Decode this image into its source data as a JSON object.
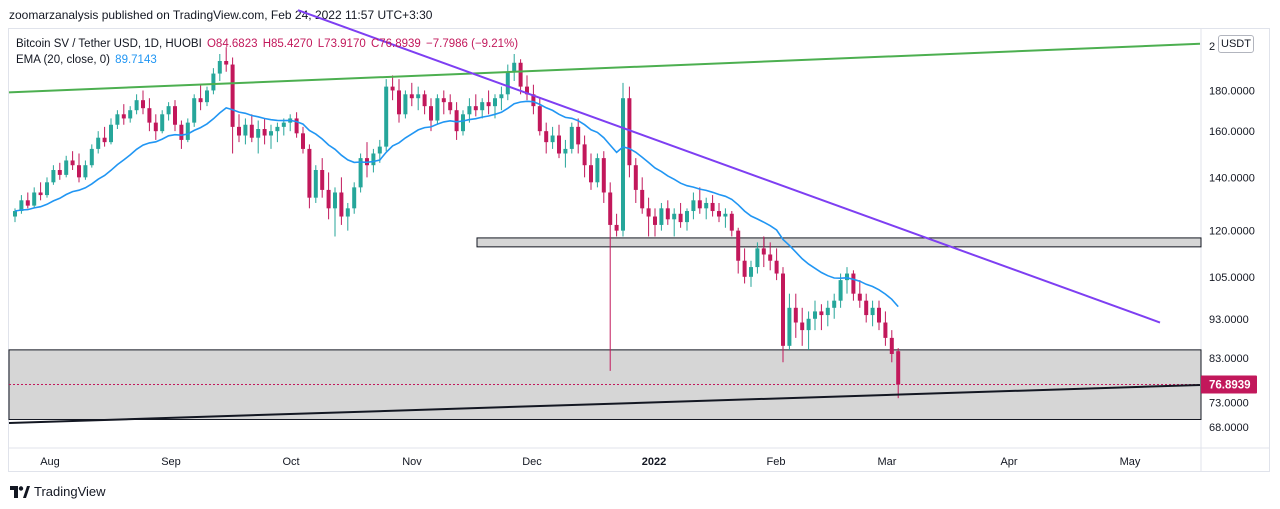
{
  "header": {
    "publish_line": "zoomarzanalysis published on TradingView.com, Feb 24, 2022 11:57 UTC+3:30"
  },
  "legend": {
    "symbol": "Bitcoin SV / Tether USD, 1D, HUOBI",
    "open": "O84.6823",
    "high": "H85.4270",
    "low": "L73.9170",
    "close": "C76.8939",
    "change": "−7.7986 (−9.21%)",
    "ema_label": "EMA (20, close, 0)",
    "ema_value": "89.7143"
  },
  "axis": {
    "unit": "USDT",
    "top_partial": "2",
    "price_labels": [
      "180.0000",
      "160.0000",
      "140.0000",
      "120.0000",
      "105.0000",
      "93.0000",
      "83.0000",
      "73.0000",
      "68.0000"
    ],
    "current_price": "76.8939"
  },
  "footer": {
    "brand": "TradingView"
  },
  "colors": {
    "up": "#26a69a",
    "down": "#c2185b",
    "ema": "#2196f3",
    "green_line": "#4caf50",
    "purple_line": "#7e3ff2",
    "black_line": "#131722",
    "zone_fill": "#d1d1d1"
  },
  "chart_data": {
    "type": "candlestick",
    "symbol": "BSV/USDT",
    "timeframe": "1D",
    "exchange": "HUOBI",
    "y_scale": "log",
    "ylim": [
      64,
      215
    ],
    "x_labels": [
      "Aug",
      "Sep",
      "Oct",
      "Nov",
      "Dec",
      "2022",
      "Feb",
      "Mar",
      "Apr",
      "May"
    ],
    "current_price": 76.8939,
    "ema_period": 20,
    "ema_last": 89.7143,
    "candles": [
      [
        125,
        128,
        123,
        127
      ],
      [
        127,
        133,
        126,
        131
      ],
      [
        131,
        134,
        128,
        129
      ],
      [
        129,
        136,
        128,
        134
      ],
      [
        134,
        138,
        131,
        133
      ],
      [
        133,
        140,
        132,
        138
      ],
      [
        138,
        145,
        137,
        143
      ],
      [
        143,
        146,
        139,
        141
      ],
      [
        141,
        149,
        140,
        147
      ],
      [
        147,
        151,
        143,
        145
      ],
      [
        145,
        150,
        138,
        140
      ],
      [
        140,
        147,
        139,
        145
      ],
      [
        145,
        154,
        144,
        152
      ],
      [
        152,
        160,
        150,
        157
      ],
      [
        157,
        162,
        153,
        155
      ],
      [
        155,
        166,
        154,
        163
      ],
      [
        163,
        170,
        161,
        168
      ],
      [
        168,
        173,
        163,
        166
      ],
      [
        166,
        172,
        164,
        170
      ],
      [
        170,
        178,
        168,
        175
      ],
      [
        175,
        180,
        168,
        171
      ],
      [
        171,
        176,
        160,
        164
      ],
      [
        164,
        168,
        156,
        160
      ],
      [
        160,
        170,
        159,
        168
      ],
      [
        168,
        174,
        165,
        172
      ],
      [
        172,
        175,
        160,
        163
      ],
      [
        163,
        165,
        152,
        156
      ],
      [
        156,
        166,
        155,
        164
      ],
      [
        164,
        178,
        162,
        176
      ],
      [
        176,
        183,
        170,
        174
      ],
      [
        174,
        182,
        172,
        180
      ],
      [
        180,
        192,
        178,
        189
      ],
      [
        189,
        200,
        185,
        196
      ],
      [
        196,
        204,
        190,
        194
      ],
      [
        194,
        198,
        150,
        162
      ],
      [
        162,
        168,
        155,
        158
      ],
      [
        158,
        166,
        154,
        163
      ],
      [
        163,
        168,
        155,
        157
      ],
      [
        157,
        165,
        150,
        161
      ],
      [
        161,
        166,
        154,
        158
      ],
      [
        158,
        163,
        152,
        160
      ],
      [
        160,
        164,
        155,
        162
      ],
      [
        162,
        166,
        158,
        164
      ],
      [
        164,
        168,
        160,
        166
      ],
      [
        166,
        169,
        157,
        159
      ],
      [
        159,
        162,
        150,
        152
      ],
      [
        152,
        154,
        128,
        132
      ],
      [
        132,
        145,
        130,
        143
      ],
      [
        143,
        148,
        132,
        135
      ],
      [
        135,
        142,
        124,
        128
      ],
      [
        128,
        136,
        118,
        134
      ],
      [
        134,
        140,
        122,
        125
      ],
      [
        125,
        130,
        120,
        128
      ],
      [
        128,
        138,
        126,
        136
      ],
      [
        136,
        150,
        134,
        148
      ],
      [
        148,
        155,
        140,
        145
      ],
      [
        145,
        152,
        142,
        150
      ],
      [
        150,
        156,
        146,
        153
      ],
      [
        153,
        186,
        151,
        182
      ],
      [
        182,
        188,
        175,
        180
      ],
      [
        180,
        186,
        164,
        168
      ],
      [
        168,
        180,
        166,
        178
      ],
      [
        178,
        184,
        172,
        176
      ],
      [
        176,
        182,
        170,
        178
      ],
      [
        178,
        180,
        168,
        172
      ],
      [
        172,
        176,
        160,
        165
      ],
      [
        165,
        178,
        163,
        176
      ],
      [
        176,
        180,
        168,
        174
      ],
      [
        174,
        178,
        168,
        170
      ],
      [
        170,
        174,
        156,
        160
      ],
      [
        160,
        170,
        158,
        168
      ],
      [
        168,
        176,
        164,
        172
      ],
      [
        172,
        178,
        167,
        170
      ],
      [
        170,
        176,
        166,
        174
      ],
      [
        174,
        180,
        168,
        172
      ],
      [
        172,
        178,
        166,
        176
      ],
      [
        176,
        182,
        170,
        178
      ],
      [
        178,
        194,
        175,
        190
      ],
      [
        190,
        200,
        185,
        195
      ],
      [
        195,
        197,
        178,
        182
      ],
      [
        182,
        188,
        175,
        178
      ],
      [
        178,
        183,
        168,
        172
      ],
      [
        172,
        176,
        158,
        160
      ],
      [
        160,
        164,
        150,
        155
      ],
      [
        155,
        162,
        152,
        158
      ],
      [
        158,
        163,
        148,
        150
      ],
      [
        150,
        156,
        144,
        152
      ],
      [
        152,
        164,
        150,
        162
      ],
      [
        162,
        166,
        150,
        154
      ],
      [
        154,
        158,
        140,
        145
      ],
      [
        145,
        150,
        135,
        138
      ],
      [
        138,
        150,
        136,
        148
      ],
      [
        148,
        151,
        130,
        134
      ],
      [
        134,
        138,
        80,
        122
      ],
      [
        122,
        126,
        118,
        120
      ],
      [
        120,
        184,
        118,
        176
      ],
      [
        176,
        182,
        140,
        145
      ],
      [
        145,
        148,
        130,
        135
      ],
      [
        135,
        140,
        126,
        128
      ],
      [
        128,
        132,
        118,
        125
      ],
      [
        125,
        128,
        118,
        122
      ],
      [
        122,
        130,
        120,
        128
      ],
      [
        128,
        131,
        122,
        124
      ],
      [
        124,
        128,
        118,
        126
      ],
      [
        126,
        130,
        121,
        123
      ],
      [
        123,
        128,
        120,
        127
      ],
      [
        127,
        134,
        124,
        131
      ],
      [
        131,
        136,
        126,
        128
      ],
      [
        128,
        132,
        124,
        130
      ],
      [
        130,
        133,
        125,
        127
      ],
      [
        127,
        130,
        123,
        125
      ],
      [
        125,
        128,
        121,
        126
      ],
      [
        126,
        127,
        118,
        120
      ],
      [
        120,
        121,
        106,
        110
      ],
      [
        110,
        114,
        103,
        105
      ],
      [
        105,
        110,
        102,
        108
      ],
      [
        108,
        116,
        106,
        114
      ],
      [
        114,
        118,
        108,
        112
      ],
      [
        112,
        116,
        107,
        110
      ],
      [
        110,
        114,
        104,
        106
      ],
      [
        106,
        108,
        82,
        86
      ],
      [
        86,
        100,
        85,
        96
      ],
      [
        96,
        100,
        88,
        92
      ],
      [
        92,
        96,
        86,
        90
      ],
      [
        90,
        95,
        85,
        93
      ],
      [
        93,
        98,
        90,
        95
      ],
      [
        95,
        97,
        90,
        94
      ],
      [
        94,
        98,
        91,
        96
      ],
      [
        96,
        100,
        93,
        98
      ],
      [
        98,
        106,
        96,
        104
      ],
      [
        104,
        108,
        100,
        106
      ],
      [
        106,
        107,
        98,
        100
      ],
      [
        100,
        104,
        96,
        98
      ],
      [
        98,
        100,
        92,
        94
      ],
      [
        94,
        98,
        91,
        96
      ],
      [
        96,
        98,
        90,
        92
      ],
      [
        92,
        95,
        86,
        88
      ],
      [
        88,
        90,
        82,
        84
      ],
      [
        84.68,
        85.43,
        73.92,
        76.89
      ]
    ],
    "annotations": [
      {
        "type": "trendline",
        "color": "green",
        "from": [
          "Jul 24",
          179
        ],
        "to": [
          "May 31",
          206
        ]
      },
      {
        "type": "trendline",
        "color": "purple",
        "from": [
          "Sep 20",
          227
        ],
        "to": [
          "May 10",
          92
        ]
      },
      {
        "type": "trendline",
        "color": "black",
        "from": [
          "Jul 24",
          68.8
        ],
        "to": [
          "May 31",
          76.8
        ]
      },
      {
        "type": "zone",
        "from_price": 114.5,
        "to_price": 117.5,
        "start": "Nov 27"
      },
      {
        "type": "zone",
        "from_price": 69.5,
        "to_price": 85,
        "start": "Jul 24"
      }
    ]
  }
}
